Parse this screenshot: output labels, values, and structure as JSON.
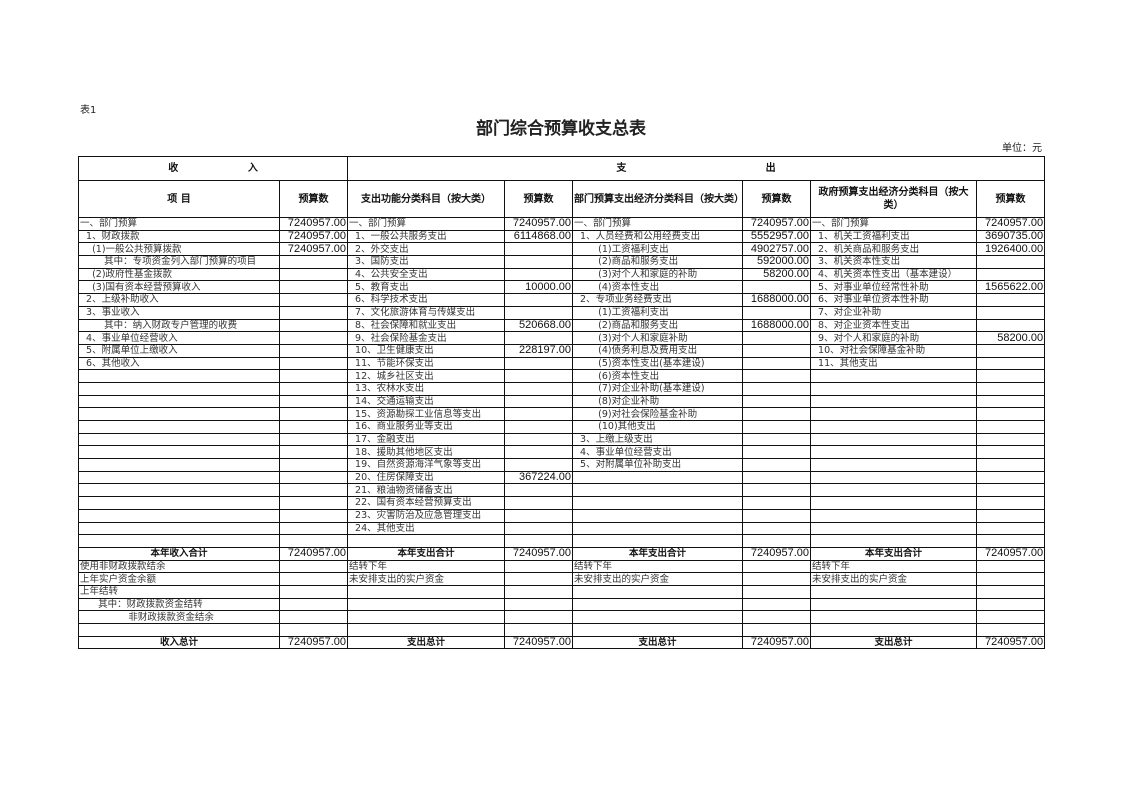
{
  "table_tag": "表1",
  "title": "部门综合预算收支总表",
  "unit": "单位：元",
  "header": {
    "income": "收                    入",
    "expense": "支                                        出",
    "cols": [
      "项      目",
      "预算数",
      "支出功能分类科目（按大类）",
      "预算数",
      "部门预算支出经济分类科目（按大类）",
      "预算数",
      "政府预算支出经济分类科目（按大类）",
      "预算数"
    ]
  },
  "rows": [
    [
      "一、部门预算",
      "7240957.00",
      "一、部门预算",
      "7240957.00",
      "一、部门预算",
      "7240957.00",
      "一、部门预算",
      "7240957.00"
    ],
    [
      "  1、财政拨款",
      "7240957.00",
      "  1、一般公共服务支出",
      "6114868.00",
      "  1、人员经费和公用经费支出",
      "5552957.00",
      "  1、机关工资福利支出",
      "3690735.00"
    ],
    [
      "    (1)一般公共预算拨款",
      "7240957.00",
      "  2、外交支出",
      "",
      "        (1)工资福利支出",
      "4902757.00",
      "  2、机关商品和服务支出",
      "1926400.00"
    ],
    [
      "        其中：专项资金列入部门预算的项目",
      "",
      "  3、国防支出",
      "",
      "        (2)商品和服务支出",
      "592000.00",
      "  3、机关资本性支出",
      ""
    ],
    [
      "    (2)政府性基金拨款",
      "",
      "  4、公共安全支出",
      "",
      "        (3)对个人和家庭的补助",
      "58200.00",
      "  4、机关资本性支出（基本建设）",
      ""
    ],
    [
      "    (3)国有资本经营预算收入",
      "",
      "  5、教育支出",
      "10000.00",
      "        (4)资本性支出",
      "",
      "  5、对事业单位经常性补助",
      "1565622.00"
    ],
    [
      "  2、上级补助收入",
      "",
      "  6、科学技术支出",
      "",
      "  2、专项业务经费支出",
      "1688000.00",
      "  6、对事业单位资本性补助",
      ""
    ],
    [
      "  3、事业收入",
      "",
      "  7、文化旅游体育与传媒支出",
      "",
      "        (1)工资福利支出",
      "",
      "  7、对企业补助",
      ""
    ],
    [
      "        其中：纳入财政专户管理的收费",
      "",
      "  8、社会保障和就业支出",
      "520668.00",
      "        (2)商品和服务支出",
      "1688000.00",
      "  8、对企业资本性支出",
      ""
    ],
    [
      "  4、事业单位经营收入",
      "",
      "  9、社会保险基金支出",
      "",
      "        (3)对个人和家庭补助",
      "",
      "  9、对个人和家庭的补助",
      "58200.00"
    ],
    [
      "  5、附属单位上缴收入",
      "",
      "  10、卫生健康支出",
      "228197.00",
      "        (4)债务利息及费用支出",
      "",
      "  10、对社会保障基金补助",
      ""
    ],
    [
      "  6、其他收入",
      "",
      "  11、节能环保支出",
      "",
      "        (5)资本性支出(基本建设)",
      "",
      "  11、其他支出",
      ""
    ],
    [
      "",
      "",
      "  12、城乡社区支出",
      "",
      "        (6)资本性支出",
      "",
      "",
      ""
    ],
    [
      "",
      "",
      "  13、农林水支出",
      "",
      "        (7)对企业补助(基本建设)",
      "",
      "",
      ""
    ],
    [
      "",
      "",
      "  14、交通运输支出",
      "",
      "        (8)对企业补助",
      "",
      "",
      ""
    ],
    [
      "",
      "",
      "  15、资源勘探工业信息等支出",
      "",
      "        (9)对社会保险基金补助",
      "",
      "",
      ""
    ],
    [
      "",
      "",
      "  16、商业服务业等支出",
      "",
      "        (10)其他支出",
      "",
      "",
      ""
    ],
    [
      "",
      "",
      "  17、金融支出",
      "",
      "  3、上缴上级支出",
      "",
      "",
      ""
    ],
    [
      "",
      "",
      "  18、援助其他地区支出",
      "",
      "  4、事业单位经营支出",
      "",
      "",
      ""
    ],
    [
      "",
      "",
      "  19、自然资源海洋气象等支出",
      "",
      "  5、对附属单位补助支出",
      "",
      "",
      ""
    ],
    [
      "",
      "",
      "  20、住房保障支出",
      "367224.00",
      "",
      "",
      "",
      ""
    ],
    [
      "",
      "",
      "  21、粮油物资储备支出",
      "",
      "",
      "",
      "",
      ""
    ],
    [
      "",
      "",
      "  22、国有资本经营预算支出",
      "",
      "",
      "",
      "",
      ""
    ],
    [
      "",
      "",
      "  23、灾害防治及应急管理支出",
      "",
      "",
      "",
      "",
      ""
    ],
    [
      "",
      "",
      "  24、其他支出",
      "",
      "",
      "",
      "",
      ""
    ],
    [
      "",
      "",
      "",
      "",
      "",
      "",
      "",
      ""
    ],
    [
      "本年收入合计",
      "7240957.00",
      "本年支出合计",
      "7240957.00",
      "本年支出合计",
      "7240957.00",
      "本年支出合计",
      "7240957.00"
    ],
    [
      "使用非财政拨款结余",
      "",
      "结转下年",
      "",
      "结转下年",
      "",
      "结转下年",
      ""
    ],
    [
      "上年实户资金余额",
      "",
      "未安排支出的实户资金",
      "",
      "未安排支出的实户资金",
      "",
      "未安排支出的实户资金",
      ""
    ],
    [
      "上年结转",
      "",
      "",
      "",
      "",
      "",
      "",
      ""
    ],
    [
      "      其中：财政拨款资金结转",
      "",
      "",
      "",
      "",
      "",
      "",
      ""
    ],
    [
      "                非财政拨款资金结余",
      "",
      "",
      "",
      "",
      "",
      "",
      ""
    ],
    [
      "",
      "",
      "",
      "",
      "",
      "",
      "",
      ""
    ],
    [
      "收入总计",
      "7240957.00",
      "支出总计",
      "7240957.00",
      "支出总计",
      "7240957.00",
      "支出总计",
      "7240957.00"
    ]
  ]
}
